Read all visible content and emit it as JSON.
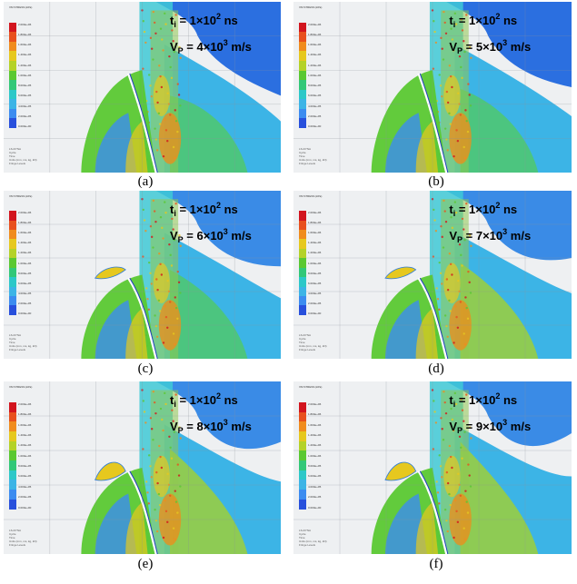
{
  "legend": {
    "title": "VM STRESS (kPa)",
    "colors": [
      "#d2141e",
      "#e8501e",
      "#f08c1e",
      "#e6c81e",
      "#b4d228",
      "#5ac832",
      "#32c878",
      "#2dc8c8",
      "#3cb4e6",
      "#3c8cf0",
      "#2850dc"
    ],
    "ticks": [
      "2.000e+06",
      "1.800e+06",
      "1.600e+06",
      "1.400e+06",
      "1.200e+06",
      "1.000e+06",
      "8.000e+05",
      "6.000e+05",
      "4.000e+05",
      "2.000e+05",
      "0.000e+00"
    ],
    "footnote": [
      "LS-DYNA",
      "Cycle",
      "Time",
      "Units (mm, ms, kg, kN)",
      "Fringe Levels"
    ]
  },
  "panels": [
    {
      "caption": "(a)",
      "t_label": "t",
      "t_sub": "i",
      "t_eq": " = 1×10",
      "t_sup": "2",
      "t_unit": " ns",
      "v_label": "V",
      "v_sub": "P",
      "v_eq": " = 4×10",
      "v_sup": "3",
      "v_unit": " m/s"
    },
    {
      "caption": "(b)",
      "t_label": "t",
      "t_sub": "i",
      "t_eq": " = 1×10",
      "t_sup": "2",
      "t_unit": " ns",
      "v_label": "V",
      "v_sub": "P",
      "v_eq": " = 5×10",
      "v_sup": "3",
      "v_unit": " m/s"
    },
    {
      "caption": "(c)",
      "t_label": "t",
      "t_sub": "i",
      "t_eq": " = 1×10",
      "t_sup": "2",
      "t_unit": " ns",
      "v_label": "V",
      "v_sub": "P",
      "v_eq": " = 6×10",
      "v_sup": "3",
      "v_unit": " m/s"
    },
    {
      "caption": "(d)",
      "t_label": "t",
      "t_sub": "i",
      "t_eq": " = 1×10",
      "t_sup": "2",
      "t_unit": " ns",
      "v_label": "V",
      "v_sub": "P",
      "v_eq": " = 7×10",
      "v_sup": "3",
      "v_unit": " m/s"
    },
    {
      "caption": "(e)",
      "t_label": "t",
      "t_sub": "i",
      "t_eq": " = 1×10",
      "t_sup": "2",
      "t_unit": " ns",
      "v_label": "V",
      "v_sub": "P",
      "v_eq": " = 8×10",
      "v_sup": "3",
      "v_unit": " m/s"
    },
    {
      "caption": "(f)",
      "t_label": "t",
      "t_sub": "i",
      "t_eq": " = 1×10",
      "t_sup": "2",
      "t_unit": " ns",
      "v_label": "V",
      "v_sub": "P",
      "v_eq": " = 9×10",
      "v_sup": "3",
      "v_unit": " m/s"
    }
  ]
}
